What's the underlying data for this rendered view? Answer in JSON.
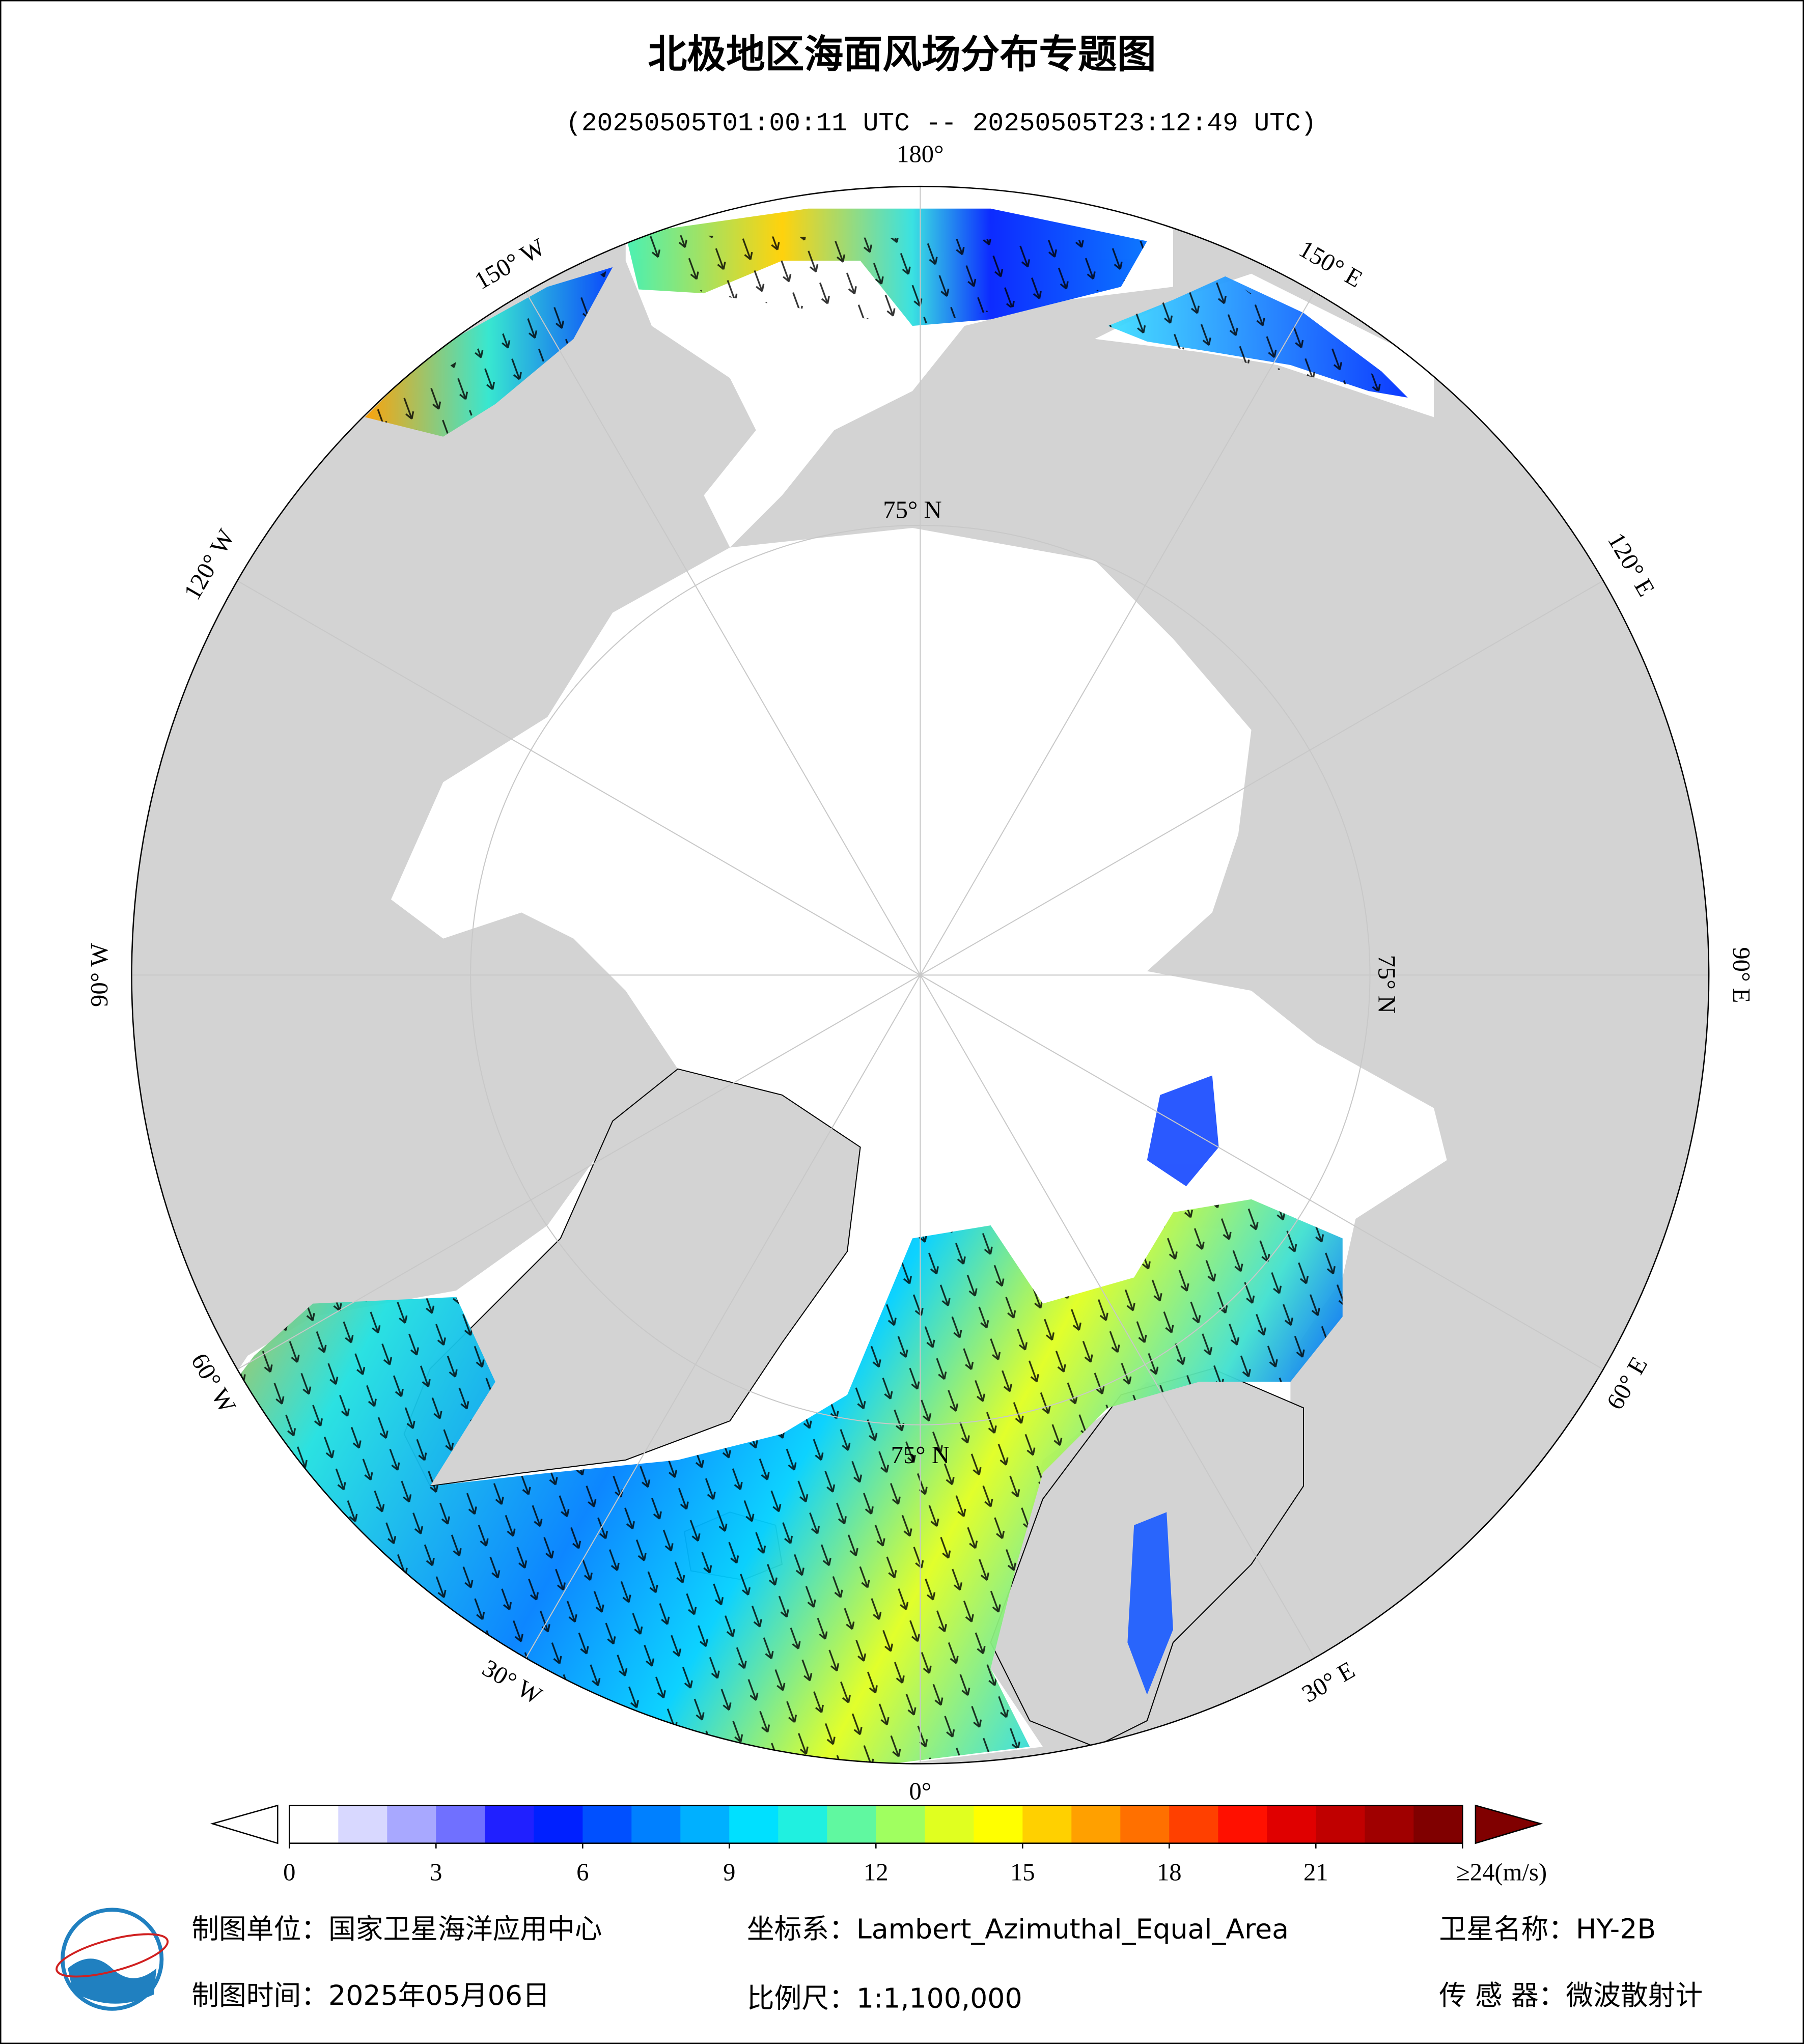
{
  "header": {
    "title": "北极地区海面风场分布专题图",
    "subtitle": "(20250505T01:00:11 UTC -- 20250505T23:12:49 UTC)"
  },
  "map": {
    "lon_labels": [
      "0°",
      "30° E",
      "60° E",
      "90° E",
      "120° E",
      "150° E",
      "180°",
      "150° W",
      "120° W",
      "90° W",
      "60° W",
      "30° W"
    ],
    "lat_label": "75° N"
  },
  "colorbar": {
    "lim": [
      0,
      24
    ],
    "ticks": [
      0,
      3,
      6,
      9,
      12,
      15,
      18,
      21,
      {
        "value": 24,
        "label": "≥24(m/s)"
      }
    ],
    "colors": [
      "#ffffff",
      "#d8d8ff",
      "#a8a8ff",
      "#7070ff",
      "#2020ff",
      "#0020ff",
      "#0050ff",
      "#0080ff",
      "#00b0ff",
      "#00e0ff",
      "#20f0e0",
      "#60f8a0",
      "#a0ff60",
      "#e0ff20",
      "#ffff00",
      "#ffd000",
      "#ffa000",
      "#ff7000",
      "#ff4000",
      "#ff1000",
      "#e00000",
      "#c00000",
      "#a00000",
      "#800000"
    ]
  },
  "footer": {
    "unit": "制图单位：国家卫星海洋应用中心",
    "crs": "坐标系：Lambert_Azimuthal_Equal_Area",
    "satellite": "卫星名称：HY-2B",
    "date": "制图时间：2025年05月06日",
    "scale": "比例尺：1:1,100,000",
    "sensor": "传 感 器：微波散射计"
  }
}
